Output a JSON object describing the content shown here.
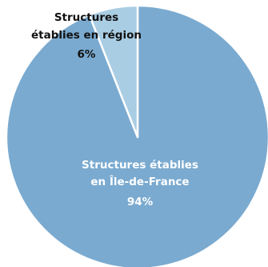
{
  "chart_data": {
    "type": "pie",
    "slices": [
      {
        "label_lines": [
          "Structures établies",
          "en Île-de-France"
        ],
        "value": 94,
        "value_label": "94%",
        "color": "#7aaad0",
        "text_color": "#ffffff"
      },
      {
        "label_lines": [
          "Structures",
          "établies en région"
        ],
        "value": 6,
        "value_label": "6%",
        "color": "#a9cde3",
        "text_color": "#111111"
      }
    ],
    "start": "12 o'clock, clockwise",
    "stroke_color": "#ffffff"
  }
}
